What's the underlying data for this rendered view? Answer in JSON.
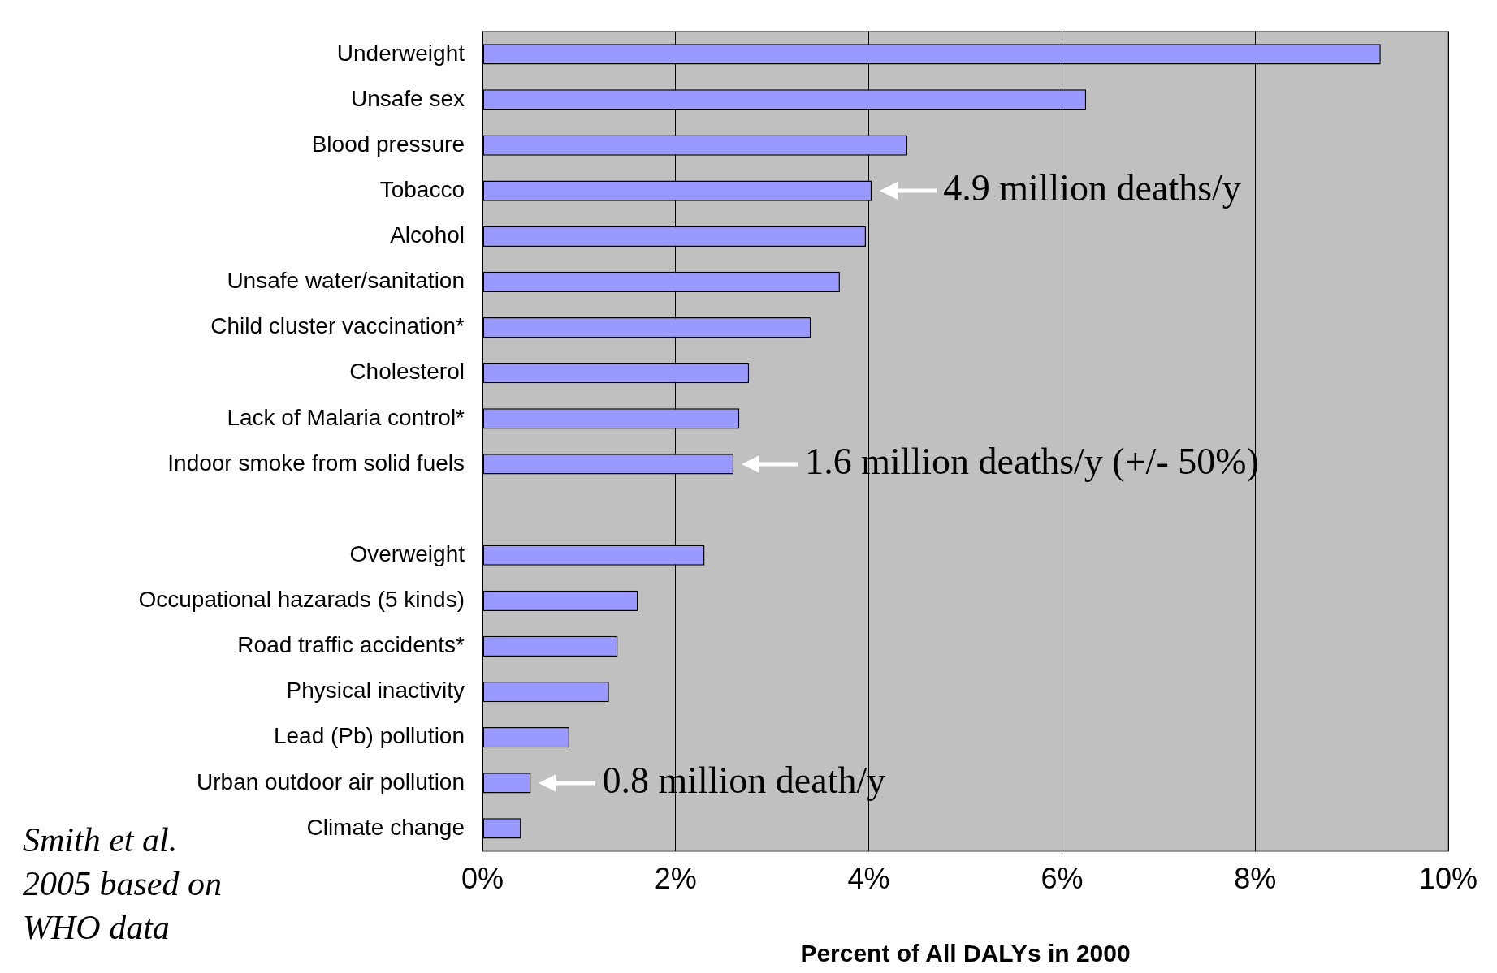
{
  "chart_data": {
    "type": "bar",
    "orientation": "horizontal",
    "xlabel": "Percent of All DALYs in 2000",
    "categories": [
      "Underweight",
      "Unsafe sex",
      "Blood pressure",
      "Tobacco",
      "Alcohol",
      "Unsafe water/sanitation",
      "Child cluster vaccination*",
      "Cholesterol",
      "Lack of Malaria control*",
      "Indoor smoke from solid fuels",
      null,
      "Overweight",
      "Occupational hazarads (5 kinds)",
      "Road traffic accidents*",
      "Physical inactivity",
      "Lead (Pb) pollution",
      "Urban outdoor air pollution",
      "Climate change"
    ],
    "values": [
      9.3,
      6.25,
      4.4,
      4.03,
      3.97,
      3.7,
      3.4,
      2.76,
      2.66,
      2.6,
      null,
      2.3,
      1.61,
      1.4,
      1.31,
      0.9,
      0.5,
      0.4
    ],
    "color": "#9999ff",
    "xlim": [
      0,
      10
    ],
    "xticks": [
      {
        "value": 0,
        "label": "0%"
      },
      {
        "value": 2,
        "label": "2%"
      },
      {
        "value": 4,
        "label": "4%"
      },
      {
        "value": 6,
        "label": "6%"
      },
      {
        "value": 8,
        "label": "8%"
      },
      {
        "value": 10,
        "label": "10%"
      }
    ],
    "grid": "x",
    "annotations": [
      {
        "text": "4.9 million deaths/y",
        "x": 4.03,
        "y": "Tobacco"
      },
      {
        "text": "1.6 million deaths/y (+/- 50%)",
        "x": 2.6,
        "y": "Indoor smoke from solid fuels"
      },
      {
        "text": "0.8 million death/y",
        "x": 0.5,
        "y": "Urban outdoor air pollution"
      },
      "Smith et al. 2005 based on WHO data"
    ]
  }
}
